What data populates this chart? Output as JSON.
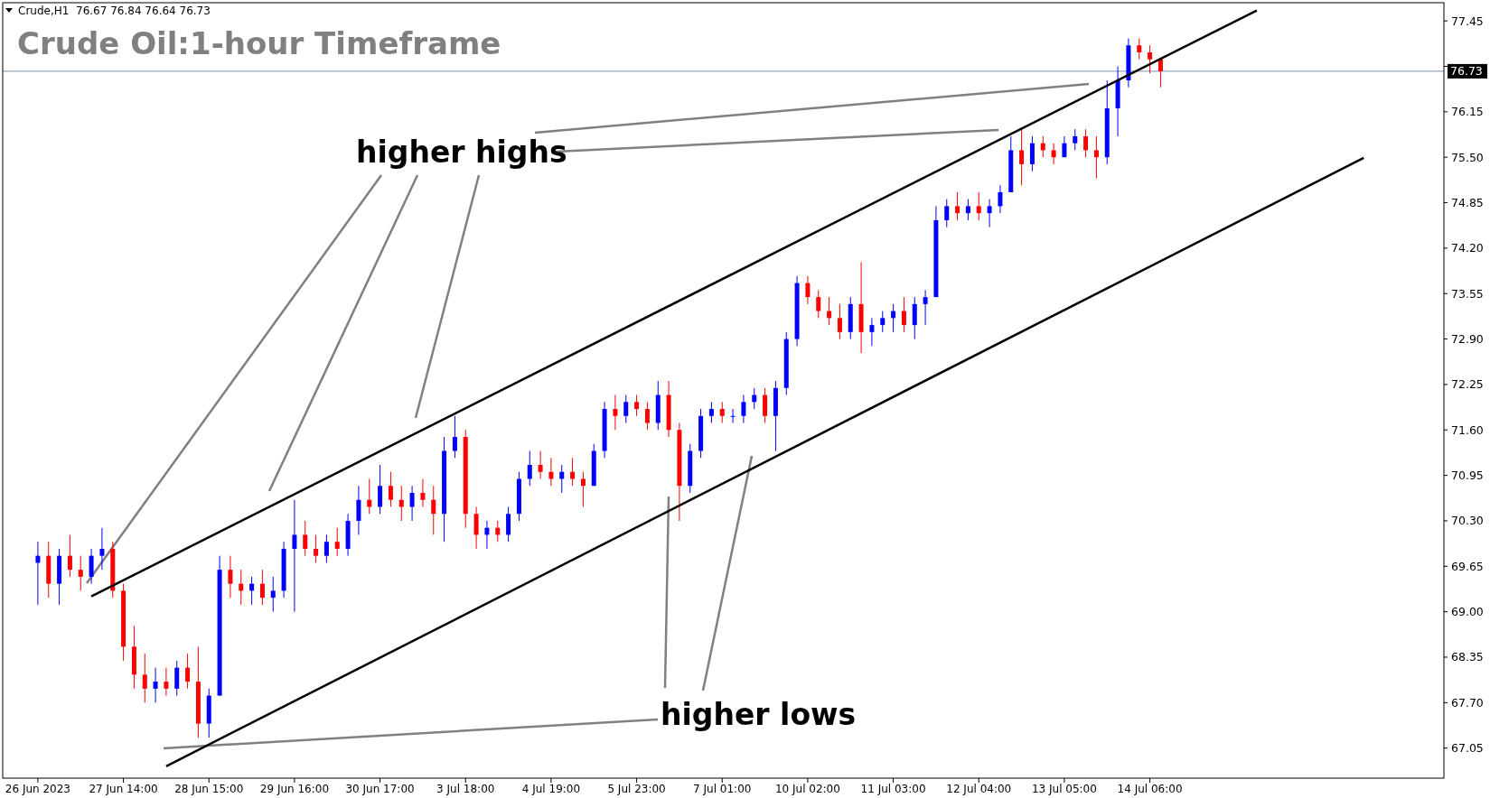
{
  "chart_data": {
    "type": "candlestick",
    "title": "Crude Oil:1-hour Timeframe",
    "subtitle": "Crude,H1  76.67 76.84 76.64 76.73",
    "annotations": [
      "higher highs",
      "higher lows"
    ],
    "categories": [
      "26 Jun 2023",
      null,
      null,
      null,
      null,
      null,
      null,
      null,
      "27 Jun 14:00",
      null,
      null,
      null,
      null,
      null,
      null,
      null,
      "28 Jun 15:00",
      null,
      null,
      null,
      null,
      null,
      null,
      null,
      "29 Jun 16:00",
      null,
      null,
      null,
      null,
      null,
      null,
      null,
      "30 Jun 17:00",
      null,
      null,
      null,
      null,
      null,
      null,
      null,
      "3 Jul 18:00",
      null,
      null,
      null,
      null,
      null,
      null,
      null,
      "4 Jul 19:00",
      null,
      null,
      null,
      null,
      null,
      null,
      null,
      "5 Jul 23:00",
      null,
      null,
      null,
      null,
      null,
      null,
      null,
      "7 Jul 01:00",
      null,
      null,
      null,
      null,
      null,
      null,
      null,
      "10 Jul 02:00",
      null,
      null,
      null,
      null,
      null,
      null,
      null,
      "11 Jul 03:00",
      null,
      null,
      null,
      null,
      null,
      null,
      null,
      "12 Jul 04:00",
      null,
      null,
      null,
      null,
      null,
      null,
      null,
      "13 Jul 05:00",
      null,
      null,
      null,
      null,
      null,
      null,
      null,
      "14 Jul 06:00",
      null,
      null,
      null,
      null,
      null,
      null,
      null,
      null,
      null,
      null,
      null,
      null,
      null,
      null,
      null,
      null,
      null,
      null,
      null,
      null,
      null,
      null,
      null,
      null,
      null,
      null,
      null
    ],
    "ohlc": [
      [
        69.7,
        70.0,
        69.1,
        69.8
      ],
      [
        69.8,
        70.0,
        69.2,
        69.4
      ],
      [
        69.4,
        69.9,
        69.1,
        69.8
      ],
      [
        69.8,
        70.1,
        69.5,
        69.6
      ],
      [
        69.6,
        69.8,
        69.3,
        69.5
      ],
      [
        69.5,
        69.9,
        69.4,
        69.8
      ],
      [
        69.8,
        70.2,
        69.6,
        69.9
      ],
      [
        69.9,
        70.0,
        69.2,
        69.3
      ],
      [
        69.3,
        69.4,
        68.3,
        68.5
      ],
      [
        68.5,
        68.8,
        67.9,
        68.1
      ],
      [
        68.1,
        68.4,
        67.7,
        67.9
      ],
      [
        67.9,
        68.2,
        67.7,
        68.0
      ],
      [
        68.0,
        68.2,
        67.8,
        67.9
      ],
      [
        67.9,
        68.3,
        67.8,
        68.2
      ],
      [
        68.2,
        68.4,
        67.9,
        68.0
      ],
      [
        68.0,
        68.5,
        67.2,
        67.4
      ],
      [
        67.4,
        67.9,
        67.2,
        67.8
      ],
      [
        67.8,
        69.8,
        67.8,
        69.6
      ],
      [
        69.6,
        69.8,
        69.2,
        69.4
      ],
      [
        69.4,
        69.6,
        69.1,
        69.3
      ],
      [
        69.3,
        69.5,
        69.1,
        69.4
      ],
      [
        69.4,
        69.6,
        69.1,
        69.2
      ],
      [
        69.2,
        69.5,
        69.0,
        69.3
      ],
      [
        69.3,
        70.0,
        69.2,
        69.9
      ],
      [
        69.9,
        70.6,
        69.0,
        70.1
      ],
      [
        70.1,
        70.3,
        69.8,
        69.9
      ],
      [
        69.9,
        70.1,
        69.7,
        69.8
      ],
      [
        69.8,
        70.1,
        69.7,
        70.0
      ],
      [
        70.0,
        70.2,
        69.8,
        69.9
      ],
      [
        69.9,
        70.4,
        69.8,
        70.3
      ],
      [
        70.3,
        70.8,
        70.1,
        70.6
      ],
      [
        70.6,
        70.9,
        70.4,
        70.5
      ],
      [
        70.5,
        71.1,
        70.4,
        70.8
      ],
      [
        70.8,
        71.0,
        70.5,
        70.6
      ],
      [
        70.6,
        70.8,
        70.3,
        70.5
      ],
      [
        70.5,
        70.8,
        70.3,
        70.7
      ],
      [
        70.7,
        70.9,
        70.5,
        70.6
      ],
      [
        70.6,
        70.8,
        70.1,
        70.4
      ],
      [
        70.4,
        71.5,
        70.0,
        71.3
      ],
      [
        71.3,
        71.8,
        71.2,
        71.5
      ],
      [
        71.5,
        71.6,
        70.2,
        70.4
      ],
      [
        70.4,
        70.5,
        69.9,
        70.1
      ],
      [
        70.1,
        70.3,
        69.9,
        70.2
      ],
      [
        70.2,
        70.3,
        70.0,
        70.1
      ],
      [
        70.1,
        70.5,
        70.0,
        70.4
      ],
      [
        70.4,
        71.0,
        70.3,
        70.9
      ],
      [
        70.9,
        71.3,
        70.8,
        71.1
      ],
      [
        71.1,
        71.3,
        70.9,
        71.0
      ],
      [
        71.0,
        71.2,
        70.8,
        70.9
      ],
      [
        70.9,
        71.1,
        70.7,
        71.0
      ],
      [
        71.0,
        71.2,
        70.8,
        70.9
      ],
      [
        70.9,
        71.0,
        70.5,
        70.8
      ],
      [
        70.8,
        71.4,
        70.8,
        71.3
      ],
      [
        71.3,
        72.0,
        71.2,
        71.9
      ],
      [
        71.9,
        72.1,
        71.6,
        71.8
      ],
      [
        71.8,
        72.1,
        71.7,
        72.0
      ],
      [
        72.0,
        72.1,
        71.8,
        71.9
      ],
      [
        71.9,
        72.0,
        71.6,
        71.7
      ],
      [
        71.7,
        72.3,
        71.6,
        72.1
      ],
      [
        72.1,
        72.3,
        71.5,
        71.6
      ],
      [
        71.6,
        71.7,
        70.3,
        70.8
      ],
      [
        70.8,
        71.4,
        70.7,
        71.3
      ],
      [
        71.3,
        71.9,
        71.2,
        71.8
      ],
      [
        71.8,
        72.0,
        71.7,
        71.9
      ],
      [
        71.9,
        72.0,
        71.7,
        71.8
      ],
      [
        71.8,
        71.9,
        71.7,
        71.8
      ],
      [
        71.8,
        72.1,
        71.7,
        72.0
      ],
      [
        72.0,
        72.2,
        71.9,
        72.1
      ],
      [
        72.1,
        72.2,
        71.7,
        71.8
      ],
      [
        71.8,
        72.3,
        71.3,
        72.2
      ],
      [
        72.2,
        73.0,
        72.1,
        72.9
      ],
      [
        72.9,
        73.8,
        72.8,
        73.7
      ],
      [
        73.7,
        73.8,
        73.4,
        73.5
      ],
      [
        73.5,
        73.6,
        73.2,
        73.3
      ],
      [
        73.3,
        73.5,
        73.1,
        73.2
      ],
      [
        73.2,
        73.4,
        72.9,
        73.0
      ],
      [
        73.0,
        73.5,
        72.9,
        73.4
      ],
      [
        73.4,
        74.0,
        72.7,
        73.0
      ],
      [
        73.0,
        73.2,
        72.8,
        73.1
      ],
      [
        73.1,
        73.3,
        73.0,
        73.2
      ],
      [
        73.2,
        73.4,
        73.0,
        73.3
      ],
      [
        73.3,
        73.5,
        73.0,
        73.1
      ],
      [
        73.1,
        73.5,
        72.9,
        73.4
      ],
      [
        73.4,
        73.6,
        73.1,
        73.5
      ],
      [
        73.5,
        74.8,
        73.5,
        74.6
      ],
      [
        74.6,
        74.9,
        74.5,
        74.8
      ],
      [
        74.8,
        75.0,
        74.6,
        74.7
      ],
      [
        74.7,
        74.9,
        74.6,
        74.8
      ],
      [
        74.8,
        75.0,
        74.6,
        74.7
      ],
      [
        74.7,
        74.9,
        74.5,
        74.8
      ],
      [
        74.8,
        75.1,
        74.7,
        75.0
      ],
      [
        75.0,
        75.8,
        75.0,
        75.6
      ],
      [
        75.6,
        75.9,
        75.1,
        75.4
      ],
      [
        75.4,
        75.8,
        75.3,
        75.7
      ],
      [
        75.7,
        75.8,
        75.5,
        75.6
      ],
      [
        75.6,
        75.7,
        75.4,
        75.5
      ],
      [
        75.5,
        75.8,
        75.5,
        75.7
      ],
      [
        75.7,
        75.9,
        75.6,
        75.8
      ],
      [
        75.8,
        75.9,
        75.5,
        75.6
      ],
      [
        75.6,
        75.8,
        75.2,
        75.5
      ],
      [
        75.5,
        76.6,
        75.4,
        76.2
      ],
      [
        76.2,
        76.8,
        75.8,
        76.6
      ],
      [
        76.6,
        77.2,
        76.5,
        77.1
      ],
      [
        77.1,
        77.2,
        76.9,
        77.0
      ],
      [
        77.0,
        77.1,
        76.7,
        76.9
      ],
      [
        76.9,
        76.9,
        76.5,
        76.73
      ],
      null,
      null,
      null,
      null,
      null,
      null,
      null,
      null,
      null,
      null,
      null,
      null,
      null,
      null,
      null,
      null,
      null,
      null,
      null,
      null,
      null,
      null,
      null,
      null,
      null,
      null
    ],
    "colors": [
      "#0000ff",
      "#ff0000",
      "#0000ff",
      "#ff0000",
      "#ff0000",
      "#0000ff",
      "#0000ff",
      "#ff0000",
      "#ff0000",
      "#ff0000",
      "#ff0000",
      "#0000ff",
      "#ff0000",
      "#0000ff",
      "#ff0000",
      "#ff0000",
      "#0000ff",
      "#0000ff",
      "#ff0000",
      "#ff0000",
      "#0000ff",
      "#ff0000",
      "#0000ff",
      "#0000ff",
      "#0000ff",
      "#ff0000",
      "#ff0000",
      "#0000ff",
      "#ff0000",
      "#0000ff",
      "#0000ff",
      "#ff0000",
      "#0000ff",
      "#ff0000",
      "#ff0000",
      "#0000ff",
      "#ff0000",
      "#ff0000",
      "#0000ff",
      "#0000ff",
      "#ff0000",
      "#ff0000",
      "#0000ff",
      "#ff0000",
      "#0000ff",
      "#0000ff",
      "#0000ff",
      "#ff0000",
      "#ff0000",
      "#0000ff",
      "#ff0000",
      "#ff0000",
      "#0000ff",
      "#0000ff",
      "#ff0000",
      "#0000ff",
      "#ff0000",
      "#ff0000",
      "#0000ff",
      "#ff0000",
      "#ff0000",
      "#0000ff",
      "#0000ff",
      "#0000ff",
      "#ff0000",
      "#0000ff",
      "#0000ff",
      "#0000ff",
      "#ff0000",
      "#0000ff",
      "#0000ff",
      "#0000ff",
      "#ff0000",
      "#ff0000",
      "#ff0000",
      "#ff0000",
      "#0000ff",
      "#ff0000",
      "#0000ff",
      "#0000ff",
      "#0000ff",
      "#ff0000",
      "#0000ff",
      "#0000ff",
      "#0000ff",
      "#0000ff",
      "#ff0000",
      "#0000ff",
      "#ff0000",
      "#0000ff",
      "#0000ff",
      "#0000ff",
      "#ff0000",
      "#0000ff",
      "#ff0000",
      "#ff0000",
      "#0000ff",
      "#0000ff",
      "#ff0000",
      "#ff0000",
      "#0000ff",
      "#0000ff",
      "#0000ff",
      "#ff0000",
      "#ff0000",
      "#ff0000",
      null,
      null,
      null,
      null,
      null,
      null,
      null,
      null,
      null,
      null,
      null,
      null,
      null,
      null,
      null,
      null,
      null,
      null,
      null,
      null,
      null,
      null,
      null,
      null,
      null,
      null
    ],
    "series": [
      {
        "type": "line",
        "color": "#000000",
        "values": [
          null,
          null,
          null,
          null,
          null,
          69.22,
          null,
          null,
          null,
          null,
          null,
          null,
          null,
          null,
          null,
          null,
          null,
          null,
          null,
          null,
          null,
          null,
          null,
          null,
          null,
          null,
          null,
          null,
          null,
          null,
          null,
          null,
          null,
          null,
          null,
          null,
          null,
          null,
          null,
          null,
          null,
          null,
          null,
          null,
          null,
          null,
          null,
          null,
          null,
          null,
          null,
          null,
          null,
          null,
          null,
          null,
          null,
          null,
          null,
          null,
          null,
          null,
          null,
          null,
          null,
          null,
          null,
          null,
          null,
          null,
          null,
          null,
          null,
          null,
          null,
          null,
          null,
          null,
          null,
          null,
          null,
          null,
          null,
          null,
          null,
          null,
          null,
          null,
          null,
          null,
          null,
          null,
          null,
          null,
          null,
          null,
          null,
          null,
          null,
          null,
          null,
          null,
          null,
          null,
          null,
          null,
          null,
          null,
          null,
          null,
          null,
          null,
          null,
          null,
          77.6,
          null,
          null,
          null,
          null,
          null,
          null,
          null,
          null,
          null,
          null,
          null,
          null,
          null,
          null,
          null,
          null,
          null
        ]
      },
      {
        "type": "line",
        "color": "#000000",
        "values": [
          null,
          null,
          null,
          null,
          null,
          null,
          null,
          null,
          null,
          null,
          null,
          null,
          66.79,
          null,
          null,
          null,
          null,
          null,
          null,
          null,
          null,
          null,
          null,
          null,
          null,
          null,
          null,
          null,
          null,
          null,
          null,
          null,
          null,
          null,
          null,
          null,
          null,
          null,
          null,
          null,
          null,
          null,
          null,
          null,
          null,
          null,
          null,
          null,
          null,
          null,
          null,
          null,
          null,
          null,
          null,
          null,
          null,
          null,
          null,
          null,
          null,
          null,
          null,
          null,
          null,
          null,
          null,
          null,
          null,
          null,
          null,
          null,
          null,
          null,
          null,
          null,
          null,
          null,
          null,
          null,
          null,
          null,
          null,
          null,
          null,
          null,
          null,
          null,
          null,
          null,
          null,
          null,
          null,
          null,
          null,
          null,
          null,
          null,
          null,
          null,
          null,
          null,
          null,
          null,
          null,
          null,
          null,
          null,
          null,
          null,
          null,
          null,
          null,
          null,
          null,
          null,
          null,
          null,
          null,
          null,
          null,
          null,
          null,
          null,
          75.49,
          null,
          null,
          null,
          null,
          null,
          null,
          null
        ]
      }
    ],
    "ylim": [
      66.62,
      77.71
    ],
    "yticks": [
      67.05,
      {
        "value": 67.7,
        "label": "67.70"
      },
      68.35,
      {
        "value": 69,
        "label": "69.00"
      },
      69.65,
      {
        "value": 70.3,
        "label": "70.30"
      },
      70.95,
      {
        "value": 71.6,
        "label": "71.60"
      },
      72.25,
      {
        "value": 72.9,
        "label": "72.90"
      },
      73.55,
      {
        "value": 74.2,
        "label": "74.20"
      },
      74.85,
      {
        "value": 75.5,
        "label": "75.50"
      },
      76.15,
      {
        "value": 76.8,
        "label": null
      },
      77.45
    ],
    "ref_lines": [
      {
        "axis": "y",
        "value": 76.73,
        "label": "76.73",
        "color": "#7f8fa6"
      }
    ],
    "marker": "none"
  }
}
